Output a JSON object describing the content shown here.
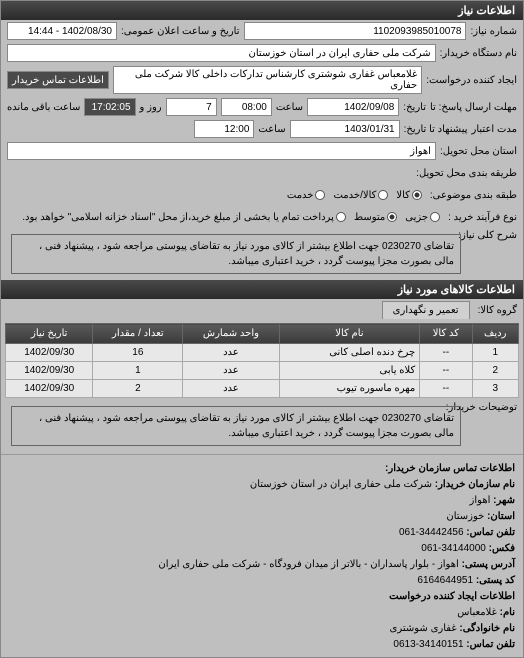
{
  "header": {
    "title": "اطلاعات نیاز"
  },
  "info": {
    "number_label": "شماره نیاز:",
    "number": "1102093985010078",
    "datetime_label": "تاریخ و ساعت اعلان عمومی:",
    "datetime": "1402/08/30 - 14:44",
    "buyer_name_label": "نام دستگاه خریدار:",
    "buyer_name": "شرکت ملی حفاری ایران در استان خوزستان",
    "buyer_contact_btn": "اطلاعات تماس خریدار",
    "requester_label": "ایجاد کننده درخواست:",
    "requester": "غلامعباس غفاری شوشتری کارشناس تدارکات داخلی کالا شرکت ملی حفاری",
    "deadline_from_label": "مهلت ارسال پاسخ: تا",
    "deadline_history_label": "تاریخ:",
    "deadline_date": "1402/09/08",
    "deadline_time_label": "ساعت",
    "deadline_time": "08:00",
    "remain_day_label": "روز و",
    "remain_days": "7",
    "remain_time": "17:02:05",
    "remain_suffix": "ساعت باقی مانده",
    "validity_label": "مدت اعتبار",
    "validity_until_label": "پیشنهاد تا تاریخ:",
    "validity_date": "1403/01/31",
    "validity_time_label": "ساعت",
    "validity_time": "12:00",
    "delivery_loc_label": "استان محل تحویل:",
    "delivery_loc": "اهواز",
    "delivery_method_label": "طریقه بندی محل تحویل:",
    "package_label": "طبقه بندی موضوعی:",
    "radios": {
      "goods": "کالا",
      "service": "کالا/خدمت",
      "service2": "خدمت"
    },
    "purchase_type_label": "نوع فرآیند خرید :",
    "purchase_radios": {
      "low": "جزیی",
      "med": "متوسط",
      "high": "پرداخت تمام یا بخشی از مبلغ خرید،از محل \"اسناد خزانه اسلامی\" خواهد بود."
    }
  },
  "desc": {
    "label": "شرح کلی نیاز:",
    "text": "تقاضای 0230270 جهت اطلاع بیشتر از کالای مورد نیاز به تقاضای پیوستی مراجعه شود ، پیشنهاد فنی ، مالی بصورت مجزا پیوست گردد ، خرید اعتباری میباشد."
  },
  "items_header": "اطلاعات کالاهای مورد نیاز",
  "items_tab": "تعمیر و نگهداری",
  "table": {
    "cols": [
      "ردیف",
      "کد کالا",
      "نام کالا",
      "واحد شمارش",
      "تعداد / مقدار",
      "تاریخ نیاز"
    ],
    "rows": [
      [
        "1",
        "--",
        "چرخ دنده اصلی کانی",
        "عدد",
        "16",
        "1402/09/30"
      ],
      [
        "2",
        "--",
        "کلاه یابی",
        "عدد",
        "1",
        "1402/09/30"
      ],
      [
        "3",
        "--",
        "مهره ماسوره تیوب",
        "عدد",
        "2",
        "1402/09/30"
      ]
    ]
  },
  "notes": {
    "label": "توضیحات خریدار:",
    "text": "تقاضای 0230270 جهت اطلاع بیشتر از کالای مورد نیاز به تقاضای پیوستی مراجعه شود ، پیشنهاد فنی ، مالی بصورت مجزا پیوست گردد ، خرید اعتباری میباشد."
  },
  "contact": {
    "header": "اطلاعات تماس سازمان خریدار:",
    "org_label": "نام سازمان خریدار:",
    "org": "شرکت ملی حفاری ایران در استان خوزستان",
    "city_label": "شهر:",
    "city": "اهواز",
    "province_label": "استان:",
    "province": "خوزستان",
    "phone_label": "تلفن تماس:",
    "phone": "34442456-061",
    "fax_label": "فکس:",
    "fax": "34144000-061",
    "postal_addr_label": "آدرس پستی:",
    "postal_addr": "اهواز - بلوار پاسداران - بالاتر از میدان فرودگاه - شرکت ملی حفاری ایران",
    "postal_code_label": "کد پستی:",
    "postal_code": "6164644951",
    "creator_header": "اطلاعات ایجاد کننده درخواست",
    "creator_name_label": "نام:",
    "creator_name": "غلامعباس",
    "creator_family_label": "نام خانوادگی:",
    "creator_family": "غفاری شوشتری",
    "creator_phone_label": "تلفن تماس:",
    "creator_phone": "34140151-0613"
  }
}
